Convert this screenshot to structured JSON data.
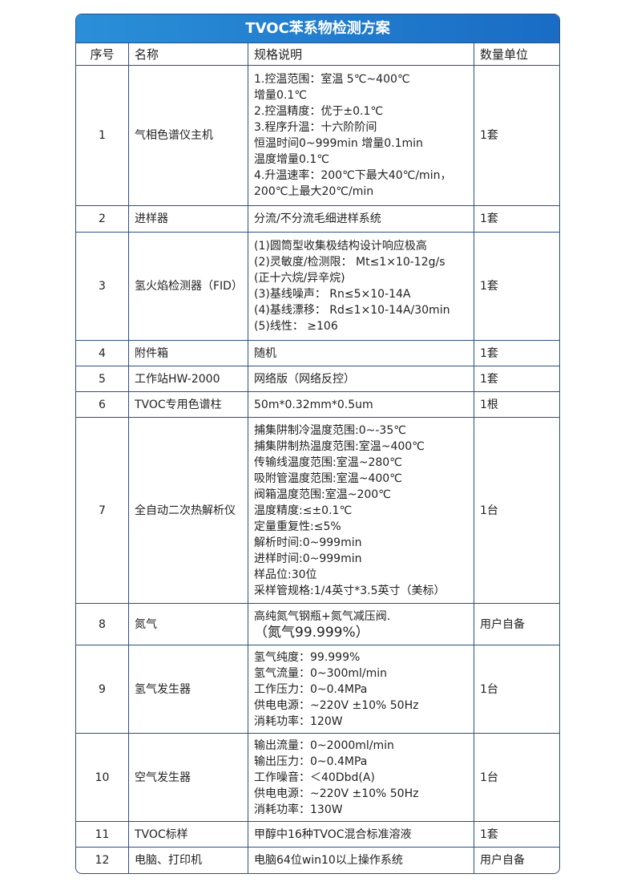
{
  "title": "TVOC苯系物检测方案",
  "headers": [
    "序号",
    "名称",
    "规格说明",
    "数量单位"
  ],
  "rows": [
    {
      "no": "1",
      "name": "气相色谱仪主机",
      "spec": [
        "1.控温范围：室温 5℃~400℃",
        "增量0.1℃",
        "2.控温精度：优于±0.1℃",
        "3.程序升温：十六阶阶间",
        "恒温时间0~999min 增量0.1min",
        "温度增量0.1℃",
        "4.升温速率：200℃下最大40℃/min，",
        "200℃上最大20℃/min"
      ],
      "qty": "1套"
    },
    {
      "no": "2",
      "name": "进样器",
      "spec": [
        "分流/不分流毛细进样系统"
      ],
      "qty": "1套"
    },
    {
      "no": "3",
      "name": "氢火焰检测器（FID）",
      "spec": [
        "(1)圆筒型收集极结构设计响应极高",
        "(2)灵敏度/检测限： Mt≤1×10-12g/s",
        "(正十六烷/异辛烷)",
        "(3)基线噪声： Rn≤5×10-14A",
        "(4)基线漂移： Rd≤1×10-14A/30min",
        "(5)线性： ≥106"
      ],
      "qty": "1套"
    },
    {
      "no": "4",
      "name": "附件箱",
      "spec": [
        "随机"
      ],
      "qty": "1套"
    },
    {
      "no": "5",
      "name": "工作站HW-2000",
      "spec": [
        "网络版（网络反控）"
      ],
      "qty": "1套"
    },
    {
      "no": "6",
      "name": "TVOC专用色谱柱",
      "spec": [
        "50m*0.32mm*0.5um"
      ],
      "qty": "1根"
    },
    {
      "no": "7",
      "name": "全自动二次热解析仪",
      "spec": [
        "捕集阱制冷温度范围:0~-35℃",
        "捕集阱制热温度范围:室温~400℃",
        "传输线温度范围:室温~280℃",
        "吸附管温度范围:室温~400℃",
        "阀箱温度范围:室温~200℃",
        "温度精度:≤±0.1℃",
        "定量重复性:≤5%",
        "解析时间:0~999min",
        "进样时间:0~999min",
        "样品位:30位",
        "采样管规格:1/4英寸*3.5英寸（美标）"
      ],
      "qty": "1台"
    },
    {
      "no": "8",
      "name": "氮气",
      "spec": [
        "高纯氮气钢瓶+氮气减压阀.",
        "（氮气99.999%）"
      ],
      "qty": "用户自备"
    },
    {
      "no": "9",
      "name": "氢气发生器",
      "spec": [
        "氢气纯度：99.999%",
        "氢气流量：0~300ml/min",
        "工作压力：0~0.4MPa",
        "供电电源：~220V ±10% 50Hz",
        "消耗功率：120W"
      ],
      "qty": "1台"
    },
    {
      "no": "10",
      "name": "空气发生器",
      "spec": [
        "输出流量：0~2000ml/min",
        "输出压力：0~0.4MPa",
        "工作噪音：＜40Dbd(A)",
        "供电电源：~220V ±10% 50Hz",
        "消耗功率：130W"
      ],
      "qty": "1台"
    },
    {
      "no": "11",
      "name": "TVOC标样",
      "spec": [
        "甲醇中16种TVOC混合标准溶液"
      ],
      "qty": "1套"
    },
    {
      "no": "12",
      "name": "电脑、打印机",
      "spec": [
        "电脑64位win10以上操作系统"
      ],
      "qty": "用户自备"
    }
  ]
}
